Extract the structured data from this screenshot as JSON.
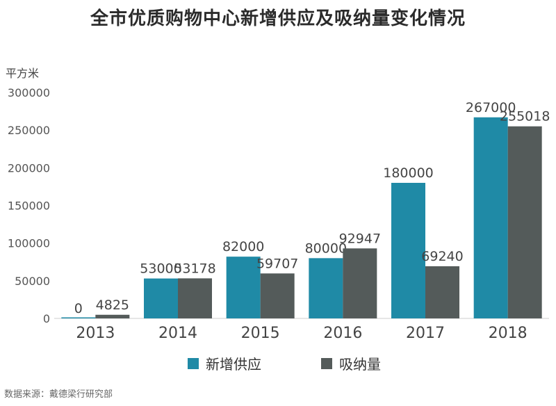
{
  "title": "全市优质购物中心新增供应及吸纳量变化情况",
  "unit_label": "平方米",
  "source_label": "数据来源：戴德梁行研究部",
  "colors": {
    "supply": "#1f8aa6",
    "absorption": "#545b5a",
    "axis": "#cccccc"
  },
  "chart_data": {
    "type": "bar",
    "categories": [
      "2013",
      "2014",
      "2015",
      "2016",
      "2017",
      "2018"
    ],
    "series": [
      {
        "name": "新增供应",
        "values": [
          0,
          53000,
          82000,
          80000,
          180000,
          267000
        ]
      },
      {
        "name": "吸纳量",
        "values": [
          4825,
          53178,
          59707,
          92947,
          69240,
          255018
        ]
      }
    ],
    "ylim": [
      0,
      300000
    ],
    "yticks": [
      "0",
      "50000",
      "100000",
      "150000",
      "200000",
      "250000",
      "300000"
    ],
    "ylabel": "平方米",
    "grid": false,
    "legend_position": "bottom-center"
  }
}
